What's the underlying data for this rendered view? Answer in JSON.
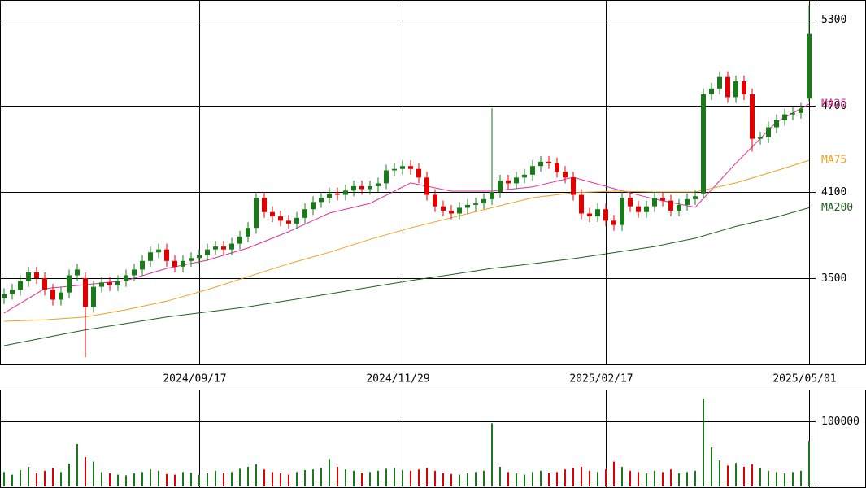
{
  "chart_data": [
    {
      "type": "candlestick",
      "xlim": [
        -0.5,
        99.8
      ],
      "xticks": [
        {
          "value": 24,
          "label": "2024/09/17"
        },
        {
          "value": 49,
          "label": "2024/11/29"
        },
        {
          "value": 74,
          "label": "2025/02/17"
        },
        {
          "value": 99,
          "label": "2025/05/01"
        }
      ],
      "ylim": [
        2900,
        5436
      ],
      "yticks": [
        3500,
        4100,
        4700,
        5300
      ],
      "up_color": "#1a7a1a",
      "down_color": "#e00000",
      "open": [
        3360,
        3390,
        3420,
        3480,
        3540,
        3500,
        3420,
        3350,
        3400,
        3520,
        3500,
        3300,
        3440,
        3470,
        3450,
        3480,
        3520,
        3560,
        3620,
        3680,
        3700,
        3620,
        3580,
        3620,
        3640,
        3660,
        3700,
        3720,
        3700,
        3740,
        3790,
        3850,
        4060,
        3960,
        3930,
        3900,
        3880,
        3920,
        3980,
        4030,
        4060,
        4090,
        4080,
        4110,
        4140,
        4120,
        4140,
        4160,
        4250,
        4260,
        4280,
        4260,
        4200,
        4080,
        4000,
        3970,
        3950,
        3990,
        4010,
        4020,
        4050,
        4100,
        4180,
        4160,
        4200,
        4220,
        4280,
        4310,
        4300,
        4240,
        4200,
        4080,
        3950,
        3930,
        3980,
        3900,
        3870,
        4060,
        4000,
        3960,
        4000,
        4060,
        4040,
        3970,
        4010,
        4050,
        4090,
        4780,
        4820,
        4900,
        4760,
        4870,
        4780,
        4470,
        4480,
        4550,
        4600,
        4640,
        4650,
        4750
      ],
      "high": [
        3430,
        3460,
        3520,
        3580,
        3580,
        3540,
        3460,
        3440,
        3560,
        3600,
        3540,
        3480,
        3510,
        3510,
        3520,
        3560,
        3600,
        3660,
        3720,
        3740,
        3740,
        3660,
        3660,
        3680,
        3700,
        3740,
        3760,
        3760,
        3780,
        3830,
        3890,
        4100,
        4100,
        4000,
        3970,
        3940,
        3960,
        4020,
        4070,
        4100,
        4130,
        4130,
        4150,
        4180,
        4180,
        4180,
        4200,
        4290,
        4300,
        4320,
        4320,
        4300,
        4240,
        4120,
        4040,
        4010,
        4030,
        4050,
        4060,
        4090,
        4683,
        4220,
        4220,
        4240,
        4260,
        4320,
        4350,
        4350,
        4340,
        4280,
        4240,
        4120,
        3990,
        4020,
        4020,
        3940,
        4100,
        4100,
        4040,
        4040,
        4100,
        4100,
        4080,
        4050,
        4090,
        4110,
        4820,
        4860,
        4940,
        4940,
        4910,
        4910,
        4820,
        4520,
        4590,
        4640,
        4680,
        4690,
        4720,
        5400
      ],
      "low": [
        3320,
        3350,
        3380,
        3440,
        3460,
        3380,
        3310,
        3310,
        3360,
        3480,
        2950,
        3260,
        3400,
        3410,
        3410,
        3440,
        3480,
        3520,
        3580,
        3640,
        3580,
        3540,
        3540,
        3580,
        3600,
        3620,
        3660,
        3660,
        3660,
        3700,
        3750,
        3810,
        3920,
        3890,
        3860,
        3840,
        3840,
        3880,
        3940,
        3990,
        4020,
        4040,
        4040,
        4070,
        4080,
        4080,
        4100,
        4120,
        4210,
        4220,
        4220,
        4160,
        4040,
        3960,
        3930,
        3910,
        3910,
        3950,
        3970,
        3980,
        4010,
        4060,
        4120,
        4120,
        4160,
        4180,
        4240,
        4260,
        4200,
        4160,
        4040,
        3910,
        3890,
        3890,
        3860,
        3830,
        3830,
        3960,
        3920,
        3920,
        3960,
        4000,
        3930,
        3930,
        3970,
        4010,
        4050,
        4740,
        4780,
        4720,
        4720,
        4740,
        4380,
        4430,
        4440,
        4510,
        4560,
        4600,
        4610,
        4730
      ],
      "close": [
        3390,
        3420,
        3480,
        3540,
        3500,
        3420,
        3350,
        3400,
        3520,
        3560,
        3300,
        3440,
        3470,
        3450,
        3480,
        3520,
        3560,
        3620,
        3680,
        3700,
        3620,
        3580,
        3620,
        3640,
        3660,
        3700,
        3720,
        3700,
        3740,
        3790,
        3850,
        4060,
        3960,
        3930,
        3900,
        3880,
        3920,
        3980,
        4030,
        4060,
        4090,
        4080,
        4110,
        4140,
        4120,
        4140,
        4160,
        4250,
        4260,
        4280,
        4260,
        4200,
        4080,
        4000,
        3970,
        3950,
        3990,
        4010,
        4020,
        4050,
        4100,
        4180,
        4160,
        4200,
        4220,
        4280,
        4310,
        4300,
        4240,
        4200,
        4080,
        3950,
        3930,
        3980,
        3900,
        3870,
        4060,
        4000,
        3960,
        4000,
        4060,
        4040,
        3970,
        4010,
        4050,
        4070,
        4780,
        4820,
        4900,
        4760,
        4870,
        4780,
        4470,
        4480,
        4550,
        4600,
        4640,
        4650,
        4680,
        5200
      ],
      "series": [
        {
          "name": "MA25",
          "color": "#e0309a",
          "x": [
            0,
            5,
            10,
            15,
            20,
            25,
            30,
            35,
            40,
            45,
            50,
            55,
            60,
            65,
            70,
            75,
            80,
            85,
            90,
            95,
            99
          ],
          "values": [
            3257,
            3427,
            3455,
            3483,
            3568,
            3625,
            3710,
            3823,
            3953,
            4020,
            4163,
            4106,
            4106,
            4135,
            4202,
            4123,
            4050,
            3993,
            4300,
            4587,
            4712
          ]
        },
        {
          "name": "MA75",
          "color": "#f0a020",
          "x": [
            0,
            5,
            10,
            15,
            20,
            25,
            30,
            35,
            40,
            45,
            50,
            55,
            60,
            65,
            70,
            75,
            80,
            85,
            90,
            95,
            99
          ],
          "values": [
            3200,
            3210,
            3230,
            3280,
            3340,
            3420,
            3510,
            3600,
            3680,
            3770,
            3850,
            3920,
            3990,
            4060,
            4095,
            4106,
            4100,
            4100,
            4163,
            4248,
            4320
          ]
        },
        {
          "name": "MA200",
          "color": "#206020",
          "x": [
            0,
            5,
            10,
            15,
            20,
            25,
            30,
            35,
            40,
            45,
            50,
            55,
            60,
            65,
            70,
            75,
            80,
            85,
            90,
            95,
            99
          ],
          "values": [
            3030,
            3085,
            3140,
            3185,
            3230,
            3265,
            3300,
            3345,
            3390,
            3437,
            3483,
            3525,
            3568,
            3600,
            3636,
            3678,
            3720,
            3778,
            3860,
            3925,
            3990
          ]
        }
      ]
    },
    {
      "type": "bar",
      "ylim": [
        0,
        147500
      ],
      "yticks": [
        100000
      ],
      "values": [
        22000,
        18000,
        25000,
        30000,
        20000,
        24000,
        28000,
        22000,
        35000,
        65000,
        45000,
        38000,
        22000,
        20000,
        18000,
        17000,
        20000,
        22000,
        26000,
        24000,
        19000,
        18000,
        22000,
        21000,
        18000,
        20000,
        24000,
        20000,
        22000,
        27000,
        30000,
        34000,
        26000,
        22000,
        20000,
        18000,
        22000,
        25000,
        26000,
        28000,
        42000,
        30000,
        26000,
        24000,
        20000,
        22000,
        24000,
        27000,
        28000,
        25000,
        24000,
        26000,
        28000,
        24000,
        20000,
        19000,
        18000,
        20000,
        22000,
        24000,
        97000,
        30000,
        22000,
        20000,
        18000,
        22000,
        24000,
        20000,
        22000,
        26000,
        28000,
        30000,
        24000,
        22000,
        26000,
        38000,
        30000,
        24000,
        22000,
        20000,
        24000,
        22000,
        26000,
        20000,
        22000,
        24000,
        135000,
        60000,
        40000,
        32000,
        36000,
        30000,
        34000,
        28000,
        24000,
        22000,
        20000,
        22000,
        24000,
        70000
      ]
    }
  ]
}
